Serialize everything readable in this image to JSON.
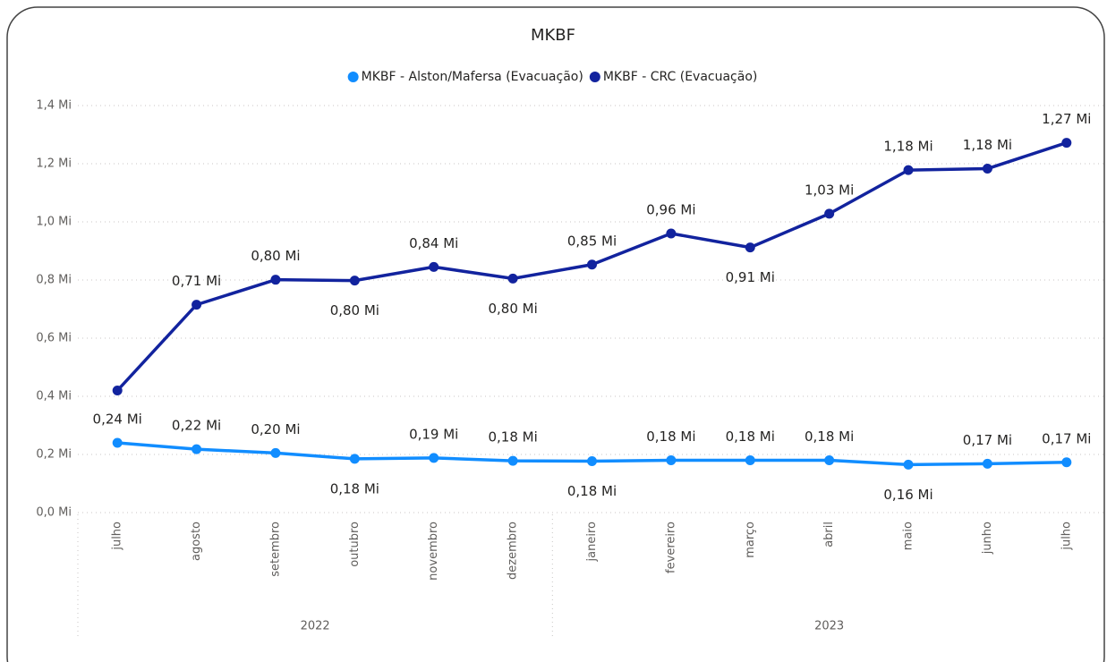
{
  "chart_data": {
    "type": "line",
    "title": "MKBF",
    "categories": [
      "julho",
      "agosto",
      "setembro",
      "outubro",
      "novembro",
      "dezembro",
      "janeiro",
      "fevereiro",
      "março",
      "abril",
      "maio",
      "junho",
      "julho"
    ],
    "groups": [
      "2022",
      null,
      null,
      null,
      null,
      null,
      "2023",
      null,
      null,
      null,
      null,
      null,
      null
    ],
    "series": [
      {
        "name": "MKBF - Alston/Mafersa (Evacuação)",
        "color": "#118dff",
        "values": [
          0.24,
          0.218,
          0.205,
          0.185,
          0.188,
          0.178,
          0.177,
          0.18,
          0.18,
          0.18,
          0.165,
          0.168,
          0.173
        ],
        "value_labels": [
          "0,24 Mi",
          "0,22 Mi",
          "0,20 Mi",
          "0,18 Mi",
          "0,19 Mi",
          "0,18 Mi",
          "0,18 Mi",
          "0,18 Mi",
          "0,18 Mi",
          "0,18 Mi",
          "0,16 Mi",
          "0,17 Mi",
          "0,17 Mi"
        ]
      },
      {
        "name": "MKBF - CRC (Evacuação)",
        "color": "#12239e",
        "values": [
          0.42,
          0.715,
          0.801,
          0.798,
          0.845,
          0.805,
          0.853,
          0.96,
          0.912,
          1.028,
          1.178,
          1.183,
          1.272
        ],
        "value_labels": [
          null,
          "0,71 Mi",
          "0,80 Mi",
          "0,80 Mi",
          "0,84 Mi",
          "0,80 Mi",
          "0,85 Mi",
          "0,96 Mi",
          "0,91 Mi",
          "1,03 Mi",
          "1,18 Mi",
          "1,18 Mi",
          "1,27 Mi"
        ]
      }
    ],
    "ylim": [
      0,
      1.4
    ],
    "yticks": [
      {
        "value": 0,
        "label": "0,0 Mi"
      },
      {
        "value": 0.2,
        "label": "0,2 Mi"
      },
      {
        "value": 0.4,
        "label": "0,4 Mi"
      },
      {
        "value": 0.6,
        "label": "0,6 Mi"
      },
      {
        "value": 0.8,
        "label": "0,8 Mi"
      },
      {
        "value": 1.0,
        "label": "1,0 Mi"
      },
      {
        "value": 1.2,
        "label": "1,2 Mi"
      },
      {
        "value": 1.4,
        "label": "1,4 Mi"
      }
    ],
    "grid": true,
    "legend": "top"
  }
}
